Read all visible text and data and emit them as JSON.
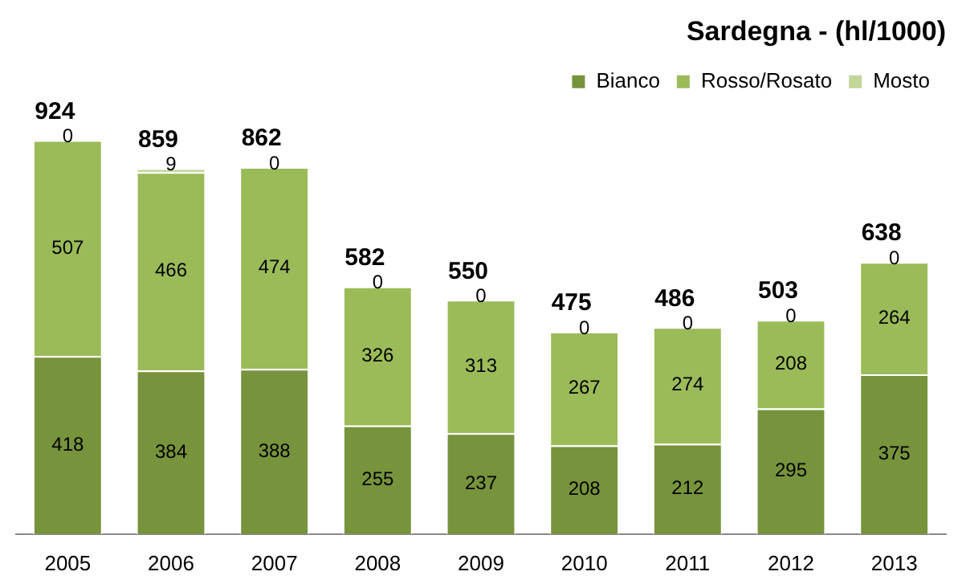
{
  "chart_data": {
    "type": "bar",
    "title": "Sardegna - (hl/1000)",
    "stacked": true,
    "data_labels": true,
    "legend": "top",
    "grid": false,
    "tick_labels": "x",
    "categories": [
      "2005",
      "2006",
      "2007",
      "2008",
      "2009",
      "2010",
      "2011",
      "2012",
      "2013"
    ],
    "series": [
      {
        "name": "Bianco",
        "color": "#77933c",
        "values": [
          418,
          384,
          388,
          255,
          237,
          208,
          212,
          295,
          375
        ]
      },
      {
        "name": "Rosso/Rosato",
        "color": "#9bbb59",
        "values": [
          507,
          466,
          474,
          326,
          313,
          267,
          274,
          208,
          264
        ]
      },
      {
        "name": "Mosto",
        "color": "#c3d69b",
        "values": [
          0,
          9,
          0,
          0,
          0,
          0,
          0,
          0,
          0
        ]
      }
    ],
    "totals": [
      "924",
      "859",
      "862",
      "582",
      "550",
      "475",
      "486",
      "503",
      "638"
    ]
  }
}
